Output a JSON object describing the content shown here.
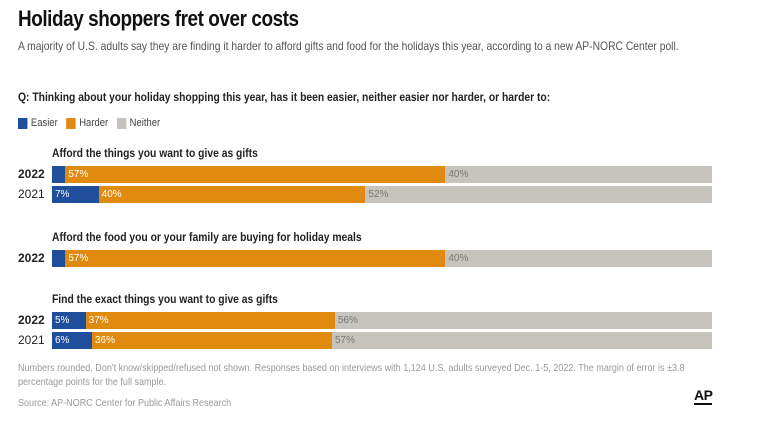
{
  "header": {
    "title": "Holiday shoppers fret over costs",
    "subtitle": "A majority of U.S. adults say they are finding it harder to afford gifts and food for the holidays this year, according to a new AP-NORC Center poll.",
    "question": "Q: Thinking about your holiday shopping this year, has it been easier, neither easier nor harder, or harder to:"
  },
  "colors": {
    "easier": "#1f4e9c",
    "harder": "#e08a10",
    "neither": "#c6c4bd",
    "easier_text": "#ffffff",
    "harder_text": "#ffffff",
    "neither_text": "#7a7870"
  },
  "chart_data": {
    "type": "bar",
    "orientation": "horizontal",
    "stacked": true,
    "legend": {
      "position": "top-left",
      "entries": [
        "Easier",
        "Harder",
        "Neither"
      ]
    },
    "groups": [
      {
        "title": "Afford the things you want to give as gifts",
        "rows": [
          {
            "year": "2022",
            "bold": true,
            "easier": 2,
            "harder": 57,
            "neither": 40,
            "easier_label": "",
            "harder_label": "57%",
            "neither_label": "40%"
          },
          {
            "year": "2021",
            "bold": false,
            "easier": 7,
            "harder": 40,
            "neither": 52,
            "easier_label": "7%",
            "harder_label": "40%",
            "neither_label": "52%"
          }
        ]
      },
      {
        "title": "Afford the food you or your family are buying for holiday meals",
        "rows": [
          {
            "year": "2022",
            "bold": true,
            "easier": 2,
            "harder": 57,
            "neither": 40,
            "easier_label": "",
            "harder_label": "57%",
            "neither_label": "40%"
          }
        ]
      },
      {
        "title": "Find the exact things you want to give as gifts",
        "rows": [
          {
            "year": "2022",
            "bold": true,
            "easier": 5,
            "harder": 37,
            "neither": 56,
            "easier_label": "5%",
            "harder_label": "37%",
            "neither_label": "56%"
          },
          {
            "year": "2021",
            "bold": false,
            "easier": 6,
            "harder": 36,
            "neither": 57,
            "easier_label": "6%",
            "harder_label": "36%",
            "neither_label": "57%"
          }
        ]
      }
    ]
  },
  "footer": {
    "notes": "Numbers rounded. Don't know/skipped/refused not shown. Responses based on interviews with 1,124 U.S. adults surveyed Dec. 1-5, 2022. The margin of error is ±3.8 percentage points for the full sample.",
    "source": "Source: AP-NORC Center for Public Affairs Research",
    "logo": "AP"
  }
}
